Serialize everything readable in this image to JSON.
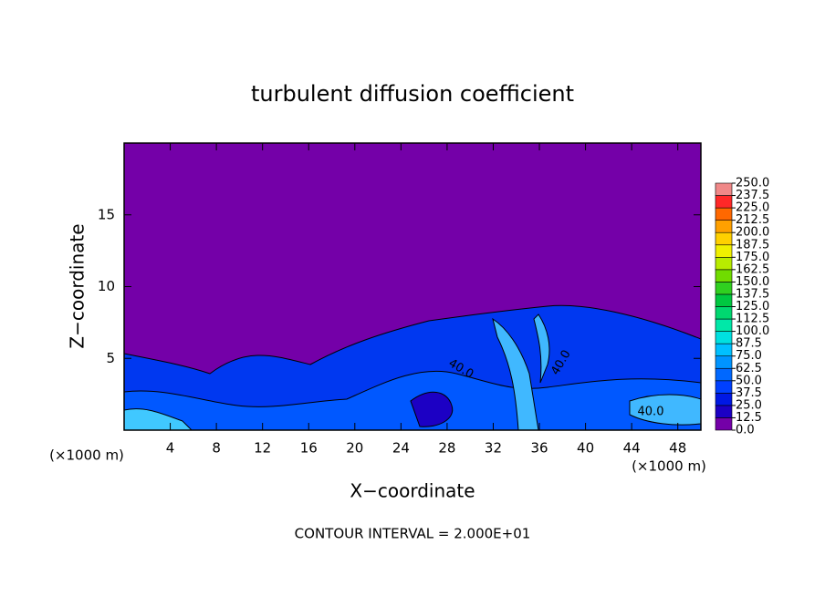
{
  "chart_data": {
    "type": "contour",
    "title": "turbulent diffusion coefficient",
    "x_label": "X−coordinate",
    "y_label": "Z−coordinate",
    "x_unit": "(×1000 m)",
    "x_unit_right": "(×1000 m)",
    "footer": "CONTOUR INTERVAL = 2.000E+01",
    "contour_labels": [
      "40.0",
      "40.0",
      "40.0"
    ],
    "xlim": [
      0,
      50
    ],
    "ylim": [
      0,
      20
    ],
    "xticks": [
      4,
      8,
      12,
      16,
      20,
      24,
      28,
      32,
      36,
      40,
      44,
      48
    ],
    "yticks": [
      5,
      10,
      15
    ],
    "colorbar": {
      "ticks": [
        {
          "value": 0,
          "label": "0.0"
        },
        12.5,
        {
          "value": 25,
          "label": "25.0"
        },
        37.5,
        {
          "value": 50,
          "label": "50.0"
        },
        62.5,
        {
          "value": 75,
          "label": "75.0"
        },
        87.5,
        {
          "value": 100,
          "label": "100.0"
        },
        112.5,
        {
          "value": 125,
          "label": "125.0"
        },
        137.5,
        {
          "value": 150,
          "label": "150.0"
        },
        162.5,
        {
          "value": 175,
          "label": "175.0"
        },
        187.5,
        {
          "value": 200,
          "label": "200.0"
        },
        212.5,
        {
          "value": 225,
          "label": "225.0"
        },
        237.5,
        {
          "value": 250,
          "label": "250.0"
        }
      ],
      "colors": [
        "#7400a8",
        "#1c00c4",
        "#0018e4",
        "#0040ff",
        "#0068ff",
        "#0094ff",
        "#00c0ff",
        "#00e0e0",
        "#00e8a8",
        "#00d870",
        "#00c840",
        "#30d020",
        "#70dc00",
        "#b8ec00",
        "#f0f000",
        "#ffd000",
        "#ffa000",
        "#ff6800",
        "#ff2828",
        "#f08888"
      ]
    }
  }
}
